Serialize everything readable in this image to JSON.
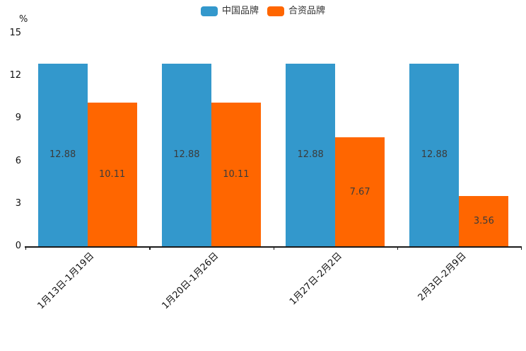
{
  "chart_data": {
    "type": "bar",
    "title": "",
    "categories": [
      "1月13日-1月19日",
      "1月20日-1月26日",
      "1月27日-2月2日",
      "2月3日-2月9日"
    ],
    "series": [
      {
        "name": "中国品牌",
        "color": "#3398CC",
        "values": [
          12.88,
          12.88,
          12.88,
          12.88
        ]
      },
      {
        "name": "合资品牌",
        "color": "#FF6600",
        "values": [
          10.11,
          10.11,
          7.67,
          3.56
        ]
      }
    ],
    "xlabel": "",
    "ylabel": "%",
    "yticks": [
      0,
      3,
      6,
      9,
      12,
      15
    ],
    "ylim": [
      0,
      15
    ],
    "legend_position": "top",
    "grid": false,
    "bar_value_labels": true,
    "x_tick_label_rotation_deg": 45
  }
}
